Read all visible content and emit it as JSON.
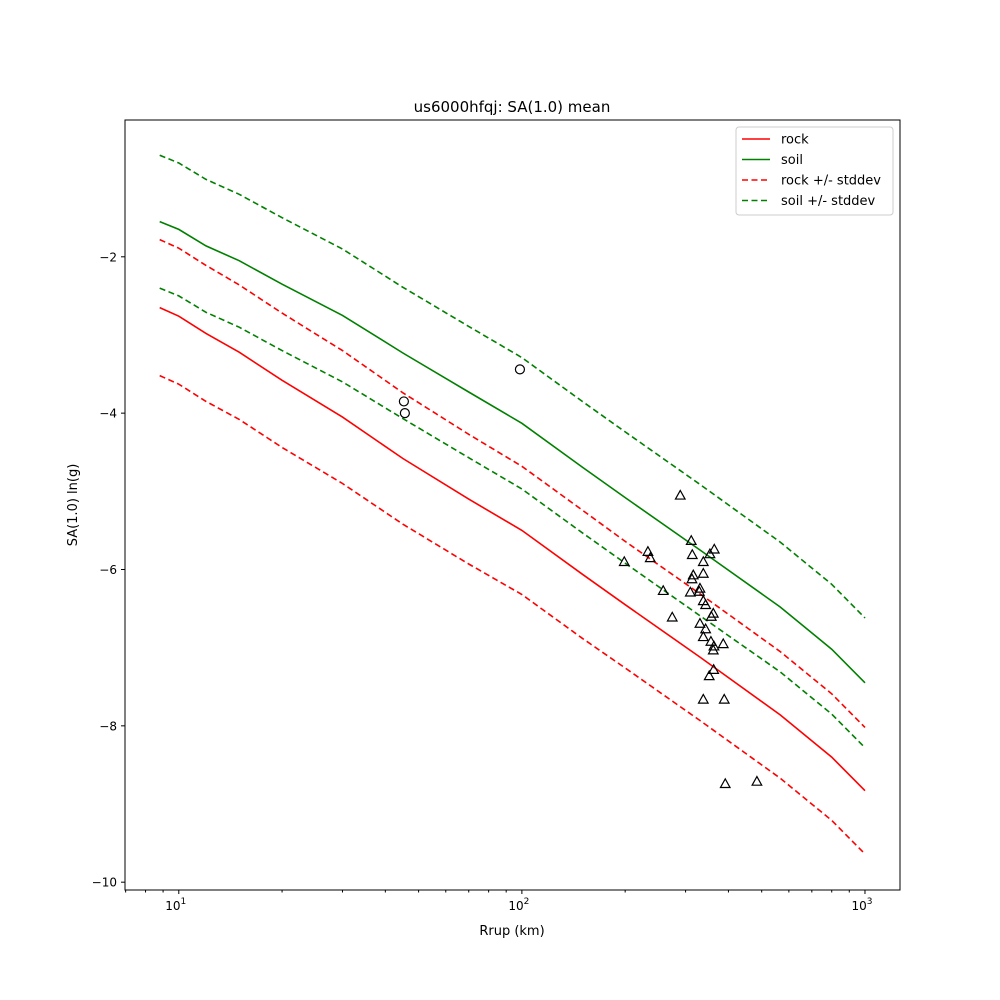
{
  "chart_data": {
    "type": "line",
    "title": "us6000hfqj: SA(1.0) mean",
    "xlabel": "Rrup (km)",
    "ylabel": "SA(1.0) ln(g)",
    "xscale": "log",
    "xlim": [
      6.97,
      1265
    ],
    "ylim": [
      -10.1,
      -0.25
    ],
    "xticks": [
      {
        "value": 10,
        "base": "10",
        "exp": "1"
      },
      {
        "value": 100,
        "base": "10",
        "exp": "2"
      },
      {
        "value": 1000,
        "base": "10",
        "exp": "3"
      }
    ],
    "yticks": [
      {
        "value": -10,
        "label": "−10"
      },
      {
        "value": -8,
        "label": "−8"
      },
      {
        "value": -6,
        "label": "−6"
      },
      {
        "value": -4,
        "label": "−4"
      },
      {
        "value": -2,
        "label": "−2"
      }
    ],
    "grid": false,
    "legend_position": "top-right",
    "x": [
      8.8,
      10,
      12,
      15,
      20,
      30,
      45,
      70,
      100,
      150,
      200,
      330,
      566,
      800,
      1000
    ],
    "series": [
      {
        "name": "rock",
        "color": "#ff0000",
        "dashed": false,
        "values": [
          -2.65,
          -2.76,
          -2.98,
          -3.22,
          -3.58,
          -4.05,
          -4.58,
          -5.1,
          -5.5,
          -6.06,
          -6.45,
          -7.12,
          -7.86,
          -8.4,
          -8.83
        ]
      },
      {
        "name": "soil",
        "color": "#008000",
        "dashed": false,
        "values": [
          -1.55,
          -1.65,
          -1.86,
          -2.05,
          -2.35,
          -2.75,
          -3.23,
          -3.73,
          -4.13,
          -4.69,
          -5.08,
          -5.75,
          -6.48,
          -7.02,
          -7.45
        ]
      },
      {
        "name": "rock +/- stddev",
        "color": "#ff0000",
        "dashed": true,
        "values": [
          -1.78,
          -1.89,
          -2.11,
          -2.36,
          -2.72,
          -3.2,
          -3.74,
          -4.27,
          -4.68,
          -5.24,
          -5.64,
          -6.31,
          -7.05,
          -7.59,
          -8.02
        ]
      },
      {
        "name": "rock +/- stddev",
        "color": "#ff0000",
        "dashed": true,
        "legend": false,
        "values": [
          -3.52,
          -3.63,
          -3.85,
          -4.08,
          -4.44,
          -4.9,
          -5.42,
          -5.93,
          -6.32,
          -6.88,
          -7.26,
          -7.93,
          -8.67,
          -9.21,
          -9.64
        ]
      },
      {
        "name": "soil +/- stddev",
        "color": "#008000",
        "dashed": true,
        "values": [
          -0.7,
          -0.8,
          -1.01,
          -1.2,
          -1.5,
          -1.9,
          -2.39,
          -2.89,
          -3.29,
          -3.85,
          -4.24,
          -4.91,
          -5.65,
          -6.19,
          -6.62
        ]
      },
      {
        "name": "soil +/- stddev",
        "color": "#008000",
        "dashed": true,
        "legend": false,
        "values": [
          -2.4,
          -2.5,
          -2.71,
          -2.9,
          -3.2,
          -3.6,
          -4.07,
          -4.57,
          -4.97,
          -5.53,
          -5.92,
          -6.59,
          -7.31,
          -7.85,
          -8.28
        ]
      }
    ],
    "legend": [
      "rock",
      "soil",
      "rock +/- stddev",
      "soil +/- stddev"
    ],
    "observations_circle": [
      [
        45.3,
        -3.85
      ],
      [
        45.6,
        -4.0
      ],
      [
        98.7,
        -3.44
      ]
    ],
    "observations_triangle": [
      [
        289.5,
        -5.05
      ],
      [
        311.6,
        -5.63
      ],
      [
        233,
        -5.77
      ],
      [
        236.7,
        -5.85
      ],
      [
        198.8,
        -5.9
      ],
      [
        363.7,
        -5.74
      ],
      [
        353.3,
        -5.8
      ],
      [
        313.8,
        -5.81
      ],
      [
        337.9,
        -5.9
      ],
      [
        337.9,
        -6.05
      ],
      [
        315.9,
        -6.07
      ],
      [
        313.1,
        -6.12
      ],
      [
        258.2,
        -6.27
      ],
      [
        309.7,
        -6.29
      ],
      [
        330.4,
        -6.24
      ],
      [
        328.9,
        -6.28
      ],
      [
        337.9,
        -6.4
      ],
      [
        343.2,
        -6.45
      ],
      [
        361.3,
        -6.56
      ],
      [
        356.5,
        -6.6
      ],
      [
        274.3,
        -6.61
      ],
      [
        330.4,
        -6.69
      ],
      [
        343.2,
        -6.76
      ],
      [
        337.9,
        -6.86
      ],
      [
        355.6,
        -6.92
      ],
      [
        386.3,
        -6.95
      ],
      [
        362.9,
        -6.98
      ],
      [
        361.3,
        -7.03
      ],
      [
        362.2,
        -7.28
      ],
      [
        351.6,
        -7.36
      ],
      [
        337.9,
        -7.66
      ],
      [
        388.9,
        -7.66
      ],
      [
        391.5,
        -8.74
      ],
      [
        484.2,
        -8.71
      ]
    ]
  }
}
